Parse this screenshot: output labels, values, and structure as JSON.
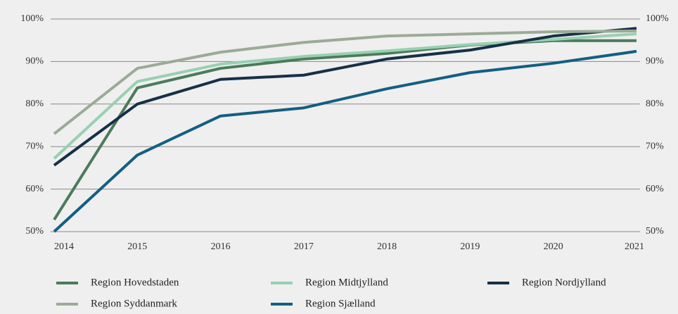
{
  "chart_data": {
    "type": "line",
    "categories": [
      "2014",
      "2015",
      "2016",
      "2017",
      "2018",
      "2019",
      "2020",
      "2021"
    ],
    "series": [
      {
        "name": "Region Hovedstaden",
        "color": "#4b7b5b",
        "values": [
          52.8,
          83.8,
          88.4,
          90.6,
          91.9,
          93.9,
          94.9,
          94.9
        ]
      },
      {
        "name": "Region Midtjylland",
        "color": "#98d0b2",
        "values": [
          67.2,
          85.3,
          89.4,
          91.2,
          92.5,
          94.0,
          95.2,
          96.5
        ]
      },
      {
        "name": "Region Nordjylland",
        "color": "#163047",
        "values": [
          65.6,
          80.0,
          85.8,
          86.8,
          90.6,
          92.7,
          96.0,
          97.8
        ]
      },
      {
        "name": "Region Syddanmark",
        "color": "#9bab96",
        "values": [
          73.0,
          88.4,
          92.2,
          94.5,
          96.0,
          96.5,
          97.0,
          97.2
        ]
      },
      {
        "name": "Region Sjælland",
        "color": "#135f82",
        "values": [
          50.0,
          68.0,
          77.2,
          79.1,
          83.6,
          87.4,
          89.6,
          92.4
        ]
      }
    ],
    "ylim": [
      50,
      100
    ],
    "yticks": [
      {
        "value": 50,
        "label": "50%"
      },
      {
        "value": 60,
        "label": "60%"
      },
      {
        "value": 70,
        "label": "70%"
      },
      {
        "value": 80,
        "label": "80%"
      },
      {
        "value": 90,
        "label": "90%"
      },
      {
        "value": 100,
        "label": "100%"
      }
    ],
    "y2lim": [
      50,
      100
    ],
    "y2ticks": [
      {
        "value": 50,
        "label": "50%"
      },
      {
        "value": 60,
        "label": "60%"
      },
      {
        "value": 70,
        "label": "70%"
      },
      {
        "value": 80,
        "label": "80%"
      },
      {
        "value": 90,
        "label": "90%"
      },
      {
        "value": 100,
        "label": "100%"
      }
    ],
    "grid": true,
    "legend": "bottom"
  }
}
